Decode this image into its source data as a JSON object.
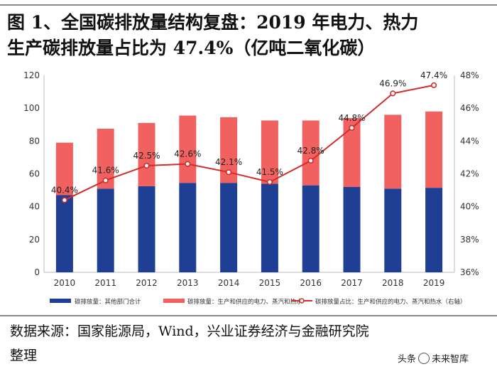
{
  "title": {
    "line1": "图 1、全国碳排放量结构复盘：2019 年电力、热力",
    "line2": "生产碳排放量占比为 47.4%（亿吨二氧化碳）"
  },
  "source": {
    "line1": "数据来源：国家能源局，Wind，兴业证券经济与金融研究院",
    "line2": "整理"
  },
  "watermark": {
    "prefix": "头条",
    "name": "未来智库"
  },
  "colors": {
    "other": "#1f3f95",
    "power": "#f06160",
    "line": "#d22d2d"
  },
  "chart_data": {
    "type": "bar",
    "stacked": true,
    "categories": [
      "2010",
      "2011",
      "2012",
      "2013",
      "2014",
      "2015",
      "2016",
      "2017",
      "2018",
      "2019"
    ],
    "series": [
      {
        "name": "碳排放量：其他部门合计",
        "type": "bar",
        "axis": "left",
        "values": [
          47,
          51,
          52.5,
          54.5,
          54.5,
          54,
          53,
          52,
          51,
          51.5
        ]
      },
      {
        "name": "碳排放量：生产和供应的电力、蒸汽和热水",
        "type": "bar",
        "axis": "left",
        "values": [
          32,
          36.5,
          38.5,
          41,
          40,
          38.5,
          39.5,
          42,
          45,
          46.5
        ]
      },
      {
        "name": "碳排放量占比：生产和供应的电力、蒸汽和热水（右轴）",
        "type": "line",
        "axis": "right",
        "values": [
          40.4,
          41.6,
          42.5,
          42.6,
          42.1,
          41.5,
          42.8,
          44.8,
          46.9,
          47.4
        ],
        "labels": [
          "40.4%",
          "41.6%",
          "42.5%",
          "42.6%",
          "42.1%",
          "41.5%",
          "42.8%",
          "44.8%",
          "46.9%",
          "47.4%"
        ]
      }
    ],
    "ylim_left": [
      0,
      120
    ],
    "yticks_left": [
      "0",
      "20",
      "40",
      "60",
      "80",
      "100",
      "120"
    ],
    "ylim_right": [
      36,
      48
    ],
    "yticks_right": [
      "36%",
      "38%",
      "40%",
      "42%",
      "44%",
      "46%",
      "48%"
    ],
    "legend_position": "bottom",
    "grid": false
  }
}
